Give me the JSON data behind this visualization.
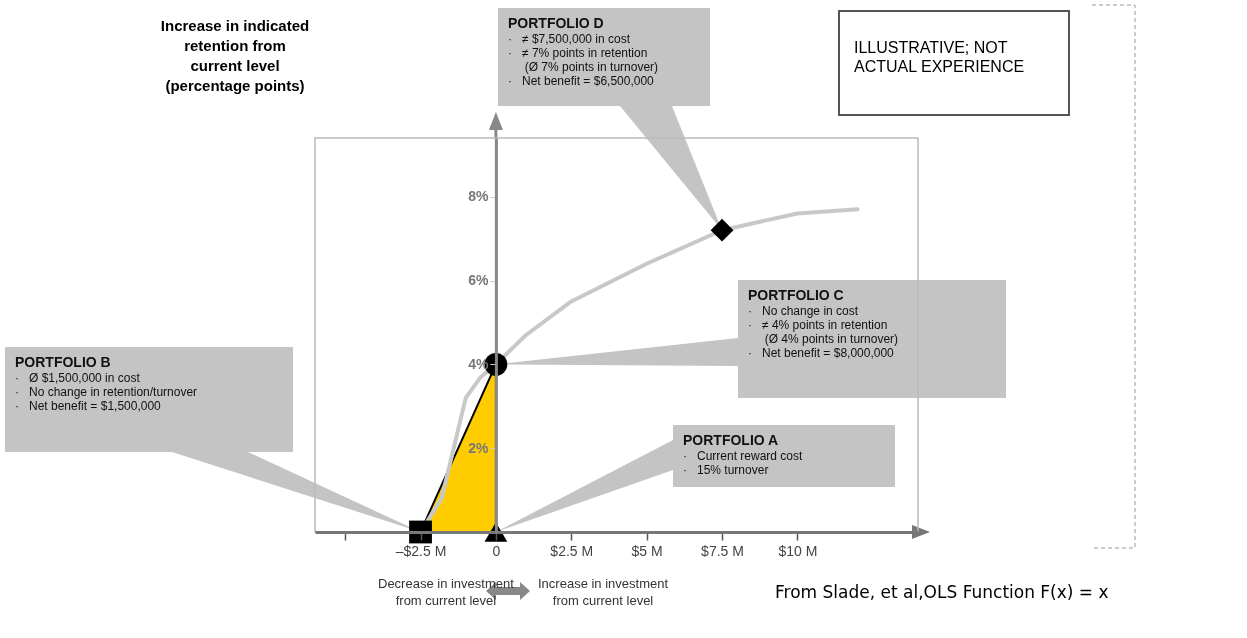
{
  "chart_data": {
    "type": "line",
    "ylabel": "Increase in indicated\nretention from\ncurrent level\n(percentage points)",
    "xlim": [
      -6,
      14
    ],
    "ylim": [
      0,
      9.4
    ],
    "xticks": [
      {
        "value": -5,
        "label": null
      },
      {
        "value": -2.5,
        "label": "–$2.5 M"
      },
      0,
      {
        "value": 2.5,
        "label": "$2.5 M"
      },
      {
        "value": 5,
        "label": "$5 M"
      },
      {
        "value": 7.5,
        "label": "$7.5 M"
      },
      {
        "value": 10,
        "label": "$10 M"
      }
    ],
    "yticks": [
      {
        "value": 2,
        "label": "2%"
      },
      {
        "value": 4,
        "label": "4%"
      },
      {
        "value": 6,
        "label": "6%"
      },
      {
        "value": 8,
        "label": "8%"
      }
    ],
    "series": [
      {
        "type": "line",
        "color": "#c8c8c8",
        "marker": "none",
        "x": [
          -2.5,
          -1.8,
          -1.4,
          -1.0,
          -0.5,
          0,
          1,
          2.5,
          5,
          7.5,
          10,
          12
        ],
        "values": [
          0,
          0.8,
          2.0,
          3.2,
          3.7,
          4.0,
          4.7,
          5.5,
          6.4,
          7.2,
          7.6,
          7.7
        ]
      },
      {
        "type": "scatter",
        "color": "#000000",
        "marker": "triangle",
        "x": [
          0
        ],
        "values": [
          0
        ]
      },
      {
        "type": "scatter",
        "color": "#000000",
        "marker": "square",
        "x": [
          -2.5
        ],
        "values": [
          0
        ]
      },
      {
        "type": "scatter",
        "color": "#000000",
        "marker": "circle",
        "x": [
          0
        ],
        "values": [
          4
        ]
      },
      {
        "type": "scatter",
        "color": "#000000",
        "marker": "diamond",
        "x": [
          7.5
        ],
        "values": [
          7.2
        ]
      }
    ],
    "annotations": [
      "PORTFOLIO A\n·   Current reward cost\n·   15% turnover",
      "PORTFOLIO B\n·   Ø $1,500,000 in cost\n·   No change in retention/turnover\n·   Net benefit = $1,500,000",
      {
        "text": "PORTFOLIO C\n·   No change in cost\n·   ≠ 4% points in retention\n     (Ø 4% points in turnover)\n·   Net benefit = $8,000,000",
        "x": 0,
        "y": 4
      },
      "PORTFOLIO D\n·   ≠ $7,500,000 in cost\n·   ≠ 7% points in retention\n     (Ø 7% points in turnover)\n·   Net benefit = $6,500,000",
      "ILLUSTRATIVE; NOT\nACTUAL EXPERIENCE",
      "Decrease in investment\nfrom current level",
      "Increase in investment\nfrom current level",
      "From Slade, et al,OLS Function F(x) = x"
    ]
  }
}
